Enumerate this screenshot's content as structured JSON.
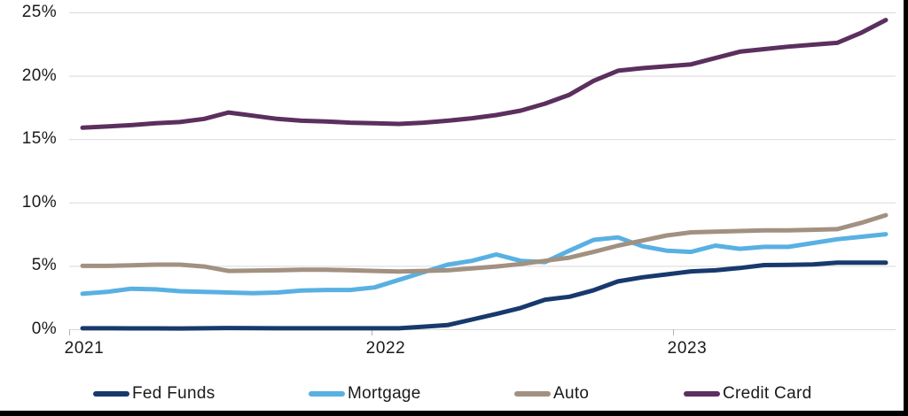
{
  "frame": {
    "background": "#ffffff",
    "edge_color": "#000000"
  },
  "style_colors": {
    "text": "#1a1a1a",
    "grid": "#d9d9d9",
    "tick": "#b3b3b3"
  },
  "chart_data": {
    "type": "line",
    "title": "",
    "xlabel": "",
    "ylabel": "",
    "ylim": [
      0,
      25
    ],
    "grid": "horizontal",
    "legend_position": "bottom",
    "y_tick_labels": [
      "0%",
      "5%",
      "10%",
      "15%",
      "20%",
      "25%"
    ],
    "y_tick_values": [
      0,
      5,
      10,
      15,
      20,
      25
    ],
    "x_tick_labels": [
      "2021",
      "2022",
      "2023"
    ],
    "x_tick_month_index": [
      0,
      12,
      24
    ],
    "months": [
      "2021-01",
      "2021-02",
      "2021-03",
      "2021-04",
      "2021-05",
      "2021-06",
      "2021-07",
      "2021-08",
      "2021-09",
      "2021-10",
      "2021-11",
      "2021-12",
      "2022-01",
      "2022-02",
      "2022-03",
      "2022-04",
      "2022-05",
      "2022-06",
      "2022-07",
      "2022-08",
      "2022-09",
      "2022-10",
      "2022-11",
      "2022-12",
      "2023-01",
      "2023-02",
      "2023-03",
      "2023-04",
      "2023-05",
      "2023-06",
      "2023-07",
      "2023-08",
      "2023-09",
      "2023-10"
    ],
    "series": [
      {
        "name": "Fed Funds",
        "color": "#18396d",
        "values": [
          0.08,
          0.08,
          0.07,
          0.07,
          0.06,
          0.08,
          0.1,
          0.09,
          0.08,
          0.08,
          0.08,
          0.08,
          0.08,
          0.08,
          0.2,
          0.33,
          0.77,
          1.21,
          1.68,
          2.33,
          2.56,
          3.08,
          3.78,
          4.1,
          4.33,
          4.57,
          4.65,
          4.83,
          5.06,
          5.08,
          5.12,
          5.25,
          5.25,
          5.25
        ]
      },
      {
        "name": "Mortgage",
        "color": "#59b0e2",
        "values": [
          2.8,
          2.95,
          3.2,
          3.15,
          3.0,
          2.95,
          2.9,
          2.85,
          2.9,
          3.05,
          3.1,
          3.1,
          3.3,
          3.9,
          4.5,
          5.1,
          5.4,
          5.9,
          5.4,
          5.3,
          6.2,
          7.05,
          7.25,
          6.55,
          6.2,
          6.1,
          6.6,
          6.35,
          6.5,
          6.5,
          6.8,
          7.1,
          7.3,
          7.5
        ]
      },
      {
        "name": "Auto",
        "color": "#a29181",
        "values": [
          5.0,
          5.0,
          5.05,
          5.1,
          5.1,
          4.95,
          4.6,
          4.62,
          4.65,
          4.7,
          4.7,
          4.65,
          4.6,
          4.55,
          4.6,
          4.65,
          4.8,
          4.95,
          5.15,
          5.4,
          5.65,
          6.1,
          6.6,
          7.0,
          7.4,
          7.65,
          7.7,
          7.75,
          7.8,
          7.8,
          7.85,
          7.9,
          8.4,
          9.0
        ]
      },
      {
        "name": "Credit Card",
        "color": "#5b2f5e",
        "values": [
          15.9,
          16.0,
          16.1,
          16.25,
          16.35,
          16.6,
          17.1,
          16.85,
          16.6,
          16.45,
          16.4,
          16.3,
          16.25,
          16.2,
          16.3,
          16.45,
          16.65,
          16.9,
          17.25,
          17.8,
          18.5,
          19.6,
          20.4,
          20.6,
          20.75,
          20.9,
          21.4,
          21.9,
          22.1,
          22.3,
          22.45,
          22.6,
          23.4,
          24.4
        ]
      }
    ]
  }
}
